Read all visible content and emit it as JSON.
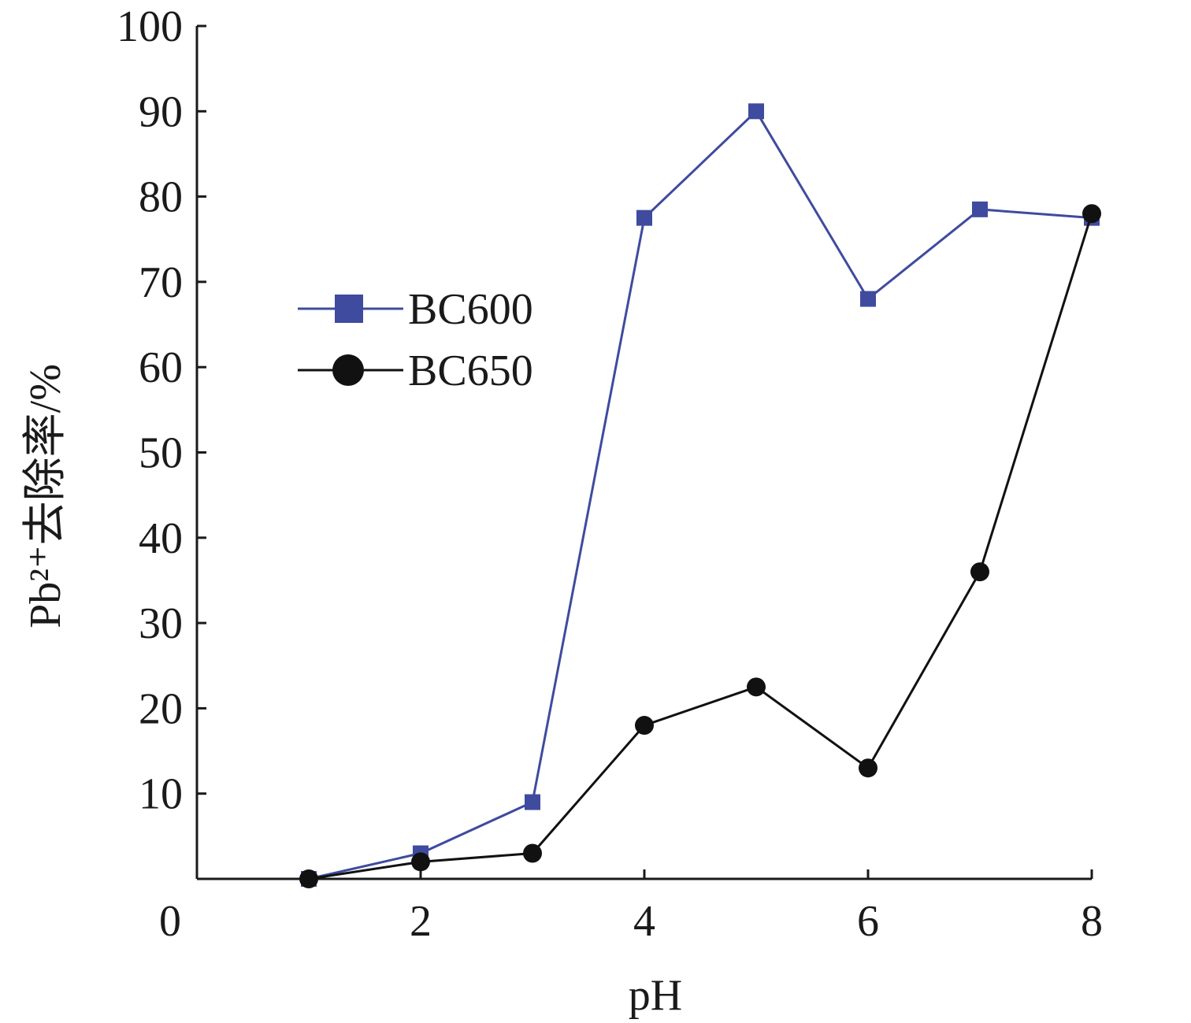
{
  "chart_data": {
    "type": "line",
    "xlabel": "pH",
    "ylabel": "Pb²⁺去除率/%",
    "xlim": [
      0,
      8
    ],
    "ylim": [
      0,
      100
    ],
    "x_ticks": [
      0,
      2,
      4,
      6,
      8
    ],
    "y_ticks": [
      10,
      20,
      30,
      40,
      50,
      60,
      70,
      80,
      90,
      100
    ],
    "grid": false,
    "legend_position": "left-middle",
    "series": [
      {
        "name": "BC600",
        "color": "#3f4b9e",
        "marker": "square",
        "x": [
          1,
          2,
          3,
          4,
          5,
          6,
          7,
          8
        ],
        "y": [
          0,
          3,
          9,
          77.5,
          90,
          68,
          78.5,
          77.5
        ]
      },
      {
        "name": "BC650",
        "color": "#111111",
        "marker": "circle",
        "x": [
          1,
          2,
          3,
          4,
          5,
          6,
          7,
          8
        ],
        "y": [
          0,
          2,
          3,
          18,
          22.5,
          13,
          36,
          78
        ]
      }
    ]
  }
}
